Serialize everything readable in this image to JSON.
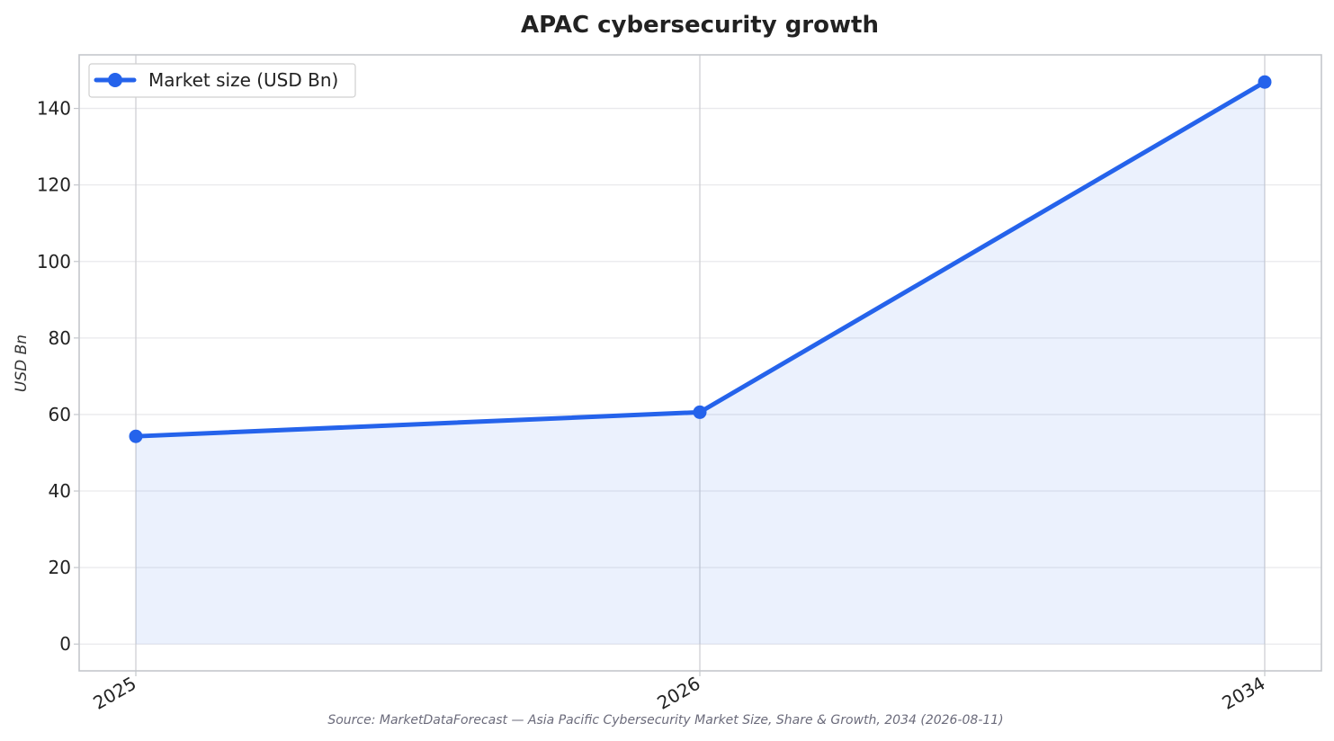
{
  "chart_data": {
    "type": "line",
    "title": "APAC cybersecurity growth",
    "xlabel": "",
    "ylabel": "USD Bn",
    "categories": [
      "2025",
      "2026",
      "2034"
    ],
    "series": [
      {
        "name": "Market size (USD Bn)",
        "values": [
          54.3,
          60.6,
          146.9
        ],
        "color": "#2563eb",
        "area_fill": true
      }
    ],
    "ylim": [
      -7,
      154
    ],
    "yticks": [
      0,
      20,
      40,
      60,
      80,
      100,
      120,
      140
    ],
    "grid": true,
    "legend_position": "top-left",
    "x_tick_rotation_deg": -30,
    "source": "Source: MarketDataForecast — Asia Pacific Cybersecurity Market Size, Share & Growth, 2034 (2026-08-11)"
  }
}
